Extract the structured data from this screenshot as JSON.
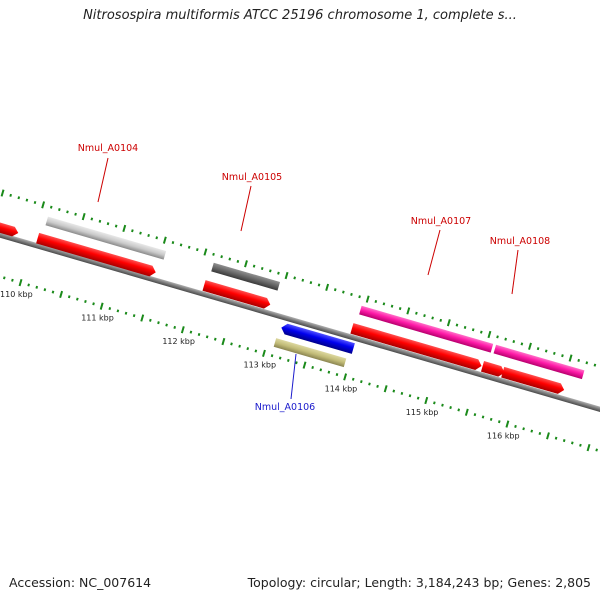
{
  "title": "Nitrosospira multiformis ATCC 25196 chromosome 1, complete s...",
  "footer": {
    "accession": "Accession: NC_007614",
    "summary": "Topology: circular; Length: 3,184,243 bp; Genes: 2,805"
  },
  "colors": {
    "backbone": "#7a7a7a",
    "tick": "#1a8a1a",
    "label_red": "#cc0000",
    "label_blue": "#1a1acc"
  },
  "scale": {
    "unit": "kbp",
    "ticks": [
      {
        "kbp": 110,
        "label": "110 kbp"
      },
      {
        "kbp": 111,
        "label": "111 kbp"
      },
      {
        "kbp": 112,
        "label": "112 kbp"
      },
      {
        "kbp": 113,
        "label": "113 kbp"
      },
      {
        "kbp": 114,
        "label": "114 kbp"
      },
      {
        "kbp": 115,
        "label": "115 kbp"
      },
      {
        "kbp": 116,
        "label": "116 kbp"
      }
    ]
  },
  "genes": [
    {
      "id": "Nmul_A0104",
      "label": "Nmul_A0104",
      "strand": "+"
    },
    {
      "id": "Nmul_A0105",
      "label": "Nmul_A0105",
      "strand": "+"
    },
    {
      "id": "Nmul_A0106",
      "label": "Nmul_A0106",
      "strand": "-"
    },
    {
      "id": "Nmul_A0107",
      "label": "Nmul_A0107",
      "strand": "+"
    },
    {
      "id": "Nmul_A0108",
      "label": "Nmul_A0108",
      "strand": "+"
    }
  ]
}
